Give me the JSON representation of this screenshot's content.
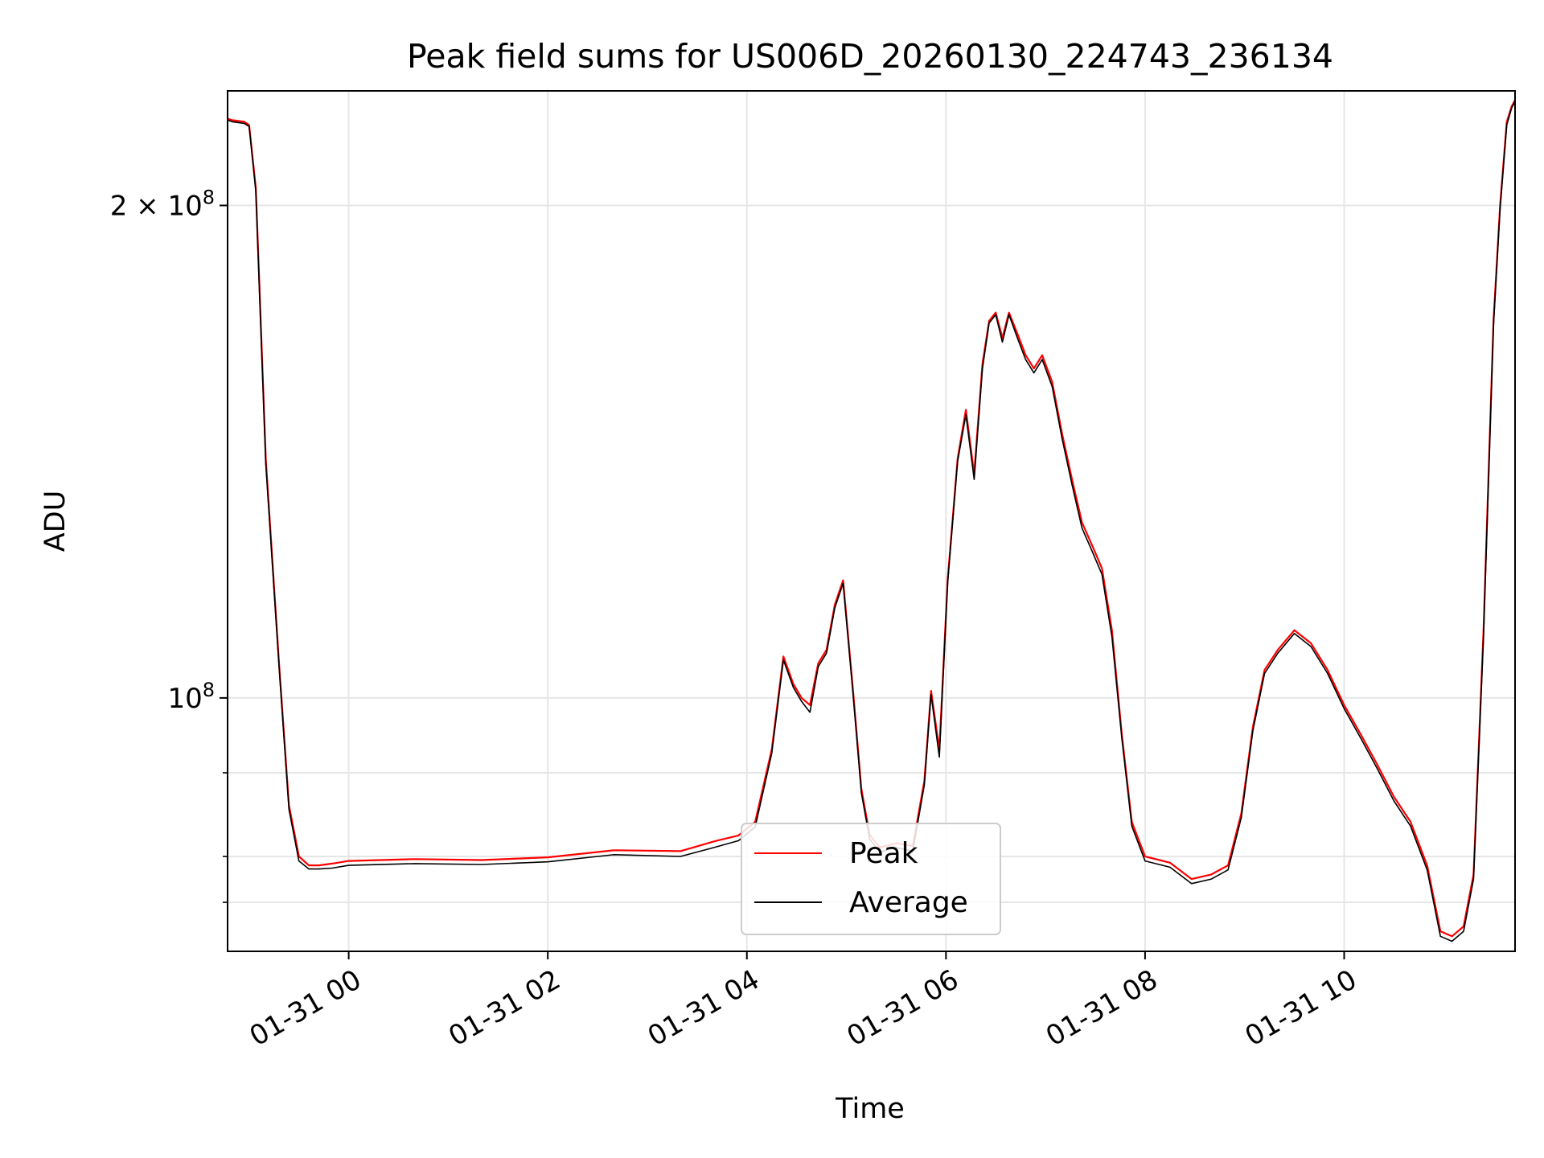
{
  "chart_data": {
    "type": "line",
    "title": "Peak field sums for US006D_20260130_224743_236134",
    "xlabel": "Time",
    "ylabel": "ADU",
    "yscale": "log",
    "xlim": [
      "2026-01-30 22:47",
      "2026-01-31 11:43"
    ],
    "ylim": [
      70000000,
      235000000
    ],
    "grid": true,
    "legend_position": "lower-center",
    "x_ticks": [
      {
        "value": "2026-01-31 00:00",
        "label": "01-31 00"
      },
      {
        "value": "2026-01-31 02:00",
        "label": "01-31 02"
      },
      {
        "value": "2026-01-31 04:00",
        "label": "01-31 04"
      },
      {
        "value": "2026-01-31 06:00",
        "label": "01-31 06"
      },
      {
        "value": "2026-01-31 08:00",
        "label": "01-31 08"
      },
      {
        "value": "2026-01-31 10:00",
        "label": "01-31 10"
      }
    ],
    "y_ticks_major": [
      {
        "value": 100000000,
        "base": "10",
        "exp": "8",
        "coef": ""
      },
      {
        "value": 200000000,
        "base": "10",
        "exp": "8",
        "coef": "2 × "
      }
    ],
    "y_ticks_minor": [
      75000000,
      80000000,
      90000000
    ],
    "series": [
      {
        "name": "Peak",
        "color": "#ff0000",
        "x": [
          "2026-01-30 22:47",
          "2026-01-30 22:50",
          "2026-01-30 22:57",
          "2026-01-30 23:00",
          "2026-01-30 23:04",
          "2026-01-30 23:10",
          "2026-01-30 23:18",
          "2026-01-30 23:24",
          "2026-01-30 23:30",
          "2026-01-30 23:36",
          "2026-01-30 23:42",
          "2026-01-30 23:50",
          "2026-01-31 00:00",
          "2026-01-31 00:40",
          "2026-01-31 01:20",
          "2026-01-31 02:00",
          "2026-01-31 02:40",
          "2026-01-31 03:20",
          "2026-01-31 03:40",
          "2026-01-31 03:55",
          "2026-01-31 04:05",
          "2026-01-31 04:15",
          "2026-01-31 04:22",
          "2026-01-31 04:28",
          "2026-01-31 04:33",
          "2026-01-31 04:38",
          "2026-01-31 04:43",
          "2026-01-31 04:48",
          "2026-01-31 04:53",
          "2026-01-31 04:58",
          "2026-01-31 05:04",
          "2026-01-31 05:09",
          "2026-01-31 05:14",
          "2026-01-31 05:20",
          "2026-01-31 05:30",
          "2026-01-31 05:40",
          "2026-01-31 05:47",
          "2026-01-31 05:51",
          "2026-01-31 05:56",
          "2026-01-31 06:01",
          "2026-01-31 06:07",
          "2026-01-31 06:12",
          "2026-01-31 06:17",
          "2026-01-31 06:22",
          "2026-01-31 06:26",
          "2026-01-31 06:30",
          "2026-01-31 06:34",
          "2026-01-31 06:38",
          "2026-01-31 06:43",
          "2026-01-31 06:48",
          "2026-01-31 06:53",
          "2026-01-31 06:58",
          "2026-01-31 07:04",
          "2026-01-31 07:10",
          "2026-01-31 07:16",
          "2026-01-31 07:22",
          "2026-01-31 07:28",
          "2026-01-31 07:34",
          "2026-01-31 07:40",
          "2026-01-31 07:46",
          "2026-01-31 07:52",
          "2026-01-31 08:00",
          "2026-01-31 08:15",
          "2026-01-31 08:28",
          "2026-01-31 08:40",
          "2026-01-31 08:50",
          "2026-01-31 08:58",
          "2026-01-31 09:05",
          "2026-01-31 09:12",
          "2026-01-31 09:20",
          "2026-01-31 09:30",
          "2026-01-31 09:40",
          "2026-01-31 09:50",
          "2026-01-31 10:00",
          "2026-01-31 10:10",
          "2026-01-31 10:20",
          "2026-01-31 10:30",
          "2026-01-31 10:40",
          "2026-01-31 10:50",
          "2026-01-31 10:58",
          "2026-01-31 11:05",
          "2026-01-31 11:12",
          "2026-01-31 11:18",
          "2026-01-31 11:24",
          "2026-01-31 11:30",
          "2026-01-31 11:34",
          "2026-01-31 11:38",
          "2026-01-31 11:41",
          "2026-01-31 11:43"
        ],
        "values": [
          226000000,
          225500000,
          225000000,
          224000000,
          205000000,
          140000000,
          105000000,
          86000000,
          80000000,
          79000000,
          79000000,
          79200000,
          79500000,
          79700000,
          79600000,
          79900000,
          80700000,
          80600000,
          81700000,
          82400000,
          84000000,
          93000000,
          106000000,
          102000000,
          100000000,
          99000000,
          105000000,
          107000000,
          114000000,
          118000000,
          101000000,
          88000000,
          82500000,
          81000000,
          81500000,
          81200000,
          89000000,
          101000000,
          93000000,
          118000000,
          140000000,
          150000000,
          137000000,
          160000000,
          170000000,
          172000000,
          166000000,
          172000000,
          167000000,
          162000000,
          159000000,
          162000000,
          156000000,
          145000000,
          136000000,
          128000000,
          124000000,
          120000000,
          110000000,
          95000000,
          84000000,
          80000000,
          79300000,
          77500000,
          78000000,
          79000000,
          85000000,
          96000000,
          104000000,
          107000000,
          110000000,
          108000000,
          104000000,
          99000000,
          95000000,
          91000000,
          87000000,
          84000000,
          79000000,
          72000000,
          71500000,
          72500000,
          78000000,
          110000000,
          170000000,
          200000000,
          225000000,
          230000000,
          232000000
        ]
      },
      {
        "name": "Average",
        "color": "#000000",
        "x": [
          "2026-01-30 22:47",
          "2026-01-30 22:50",
          "2026-01-30 22:57",
          "2026-01-30 23:00",
          "2026-01-30 23:04",
          "2026-01-30 23:10",
          "2026-01-30 23:18",
          "2026-01-30 23:24",
          "2026-01-30 23:30",
          "2026-01-30 23:36",
          "2026-01-30 23:42",
          "2026-01-30 23:50",
          "2026-01-31 00:00",
          "2026-01-31 00:40",
          "2026-01-31 01:20",
          "2026-01-31 02:00",
          "2026-01-31 02:40",
          "2026-01-31 03:20",
          "2026-01-31 03:40",
          "2026-01-31 03:55",
          "2026-01-31 04:05",
          "2026-01-31 04:15",
          "2026-01-31 04:22",
          "2026-01-31 04:28",
          "2026-01-31 04:33",
          "2026-01-31 04:38",
          "2026-01-31 04:43",
          "2026-01-31 04:48",
          "2026-01-31 04:53",
          "2026-01-31 04:58",
          "2026-01-31 05:04",
          "2026-01-31 05:09",
          "2026-01-31 05:14",
          "2026-01-31 05:20",
          "2026-01-31 05:30",
          "2026-01-31 05:40",
          "2026-01-31 05:47",
          "2026-01-31 05:51",
          "2026-01-31 05:56",
          "2026-01-31 06:01",
          "2026-01-31 06:07",
          "2026-01-31 06:12",
          "2026-01-31 06:17",
          "2026-01-31 06:22",
          "2026-01-31 06:26",
          "2026-01-31 06:30",
          "2026-01-31 06:34",
          "2026-01-31 06:38",
          "2026-01-31 06:43",
          "2026-01-31 06:48",
          "2026-01-31 06:53",
          "2026-01-31 06:58",
          "2026-01-31 07:04",
          "2026-01-31 07:10",
          "2026-01-31 07:16",
          "2026-01-31 07:22",
          "2026-01-31 07:28",
          "2026-01-31 07:34",
          "2026-01-31 07:40",
          "2026-01-31 07:46",
          "2026-01-31 07:52",
          "2026-01-31 08:00",
          "2026-01-31 08:15",
          "2026-01-31 08:28",
          "2026-01-31 08:40",
          "2026-01-31 08:50",
          "2026-01-31 08:58",
          "2026-01-31 09:05",
          "2026-01-31 09:12",
          "2026-01-31 09:20",
          "2026-01-31 09:30",
          "2026-01-31 09:40",
          "2026-01-31 09:50",
          "2026-01-31 10:00",
          "2026-01-31 10:10",
          "2026-01-31 10:20",
          "2026-01-31 10:30",
          "2026-01-31 10:40",
          "2026-01-31 10:50",
          "2026-01-31 10:58",
          "2026-01-31 11:05",
          "2026-01-31 11:12",
          "2026-01-31 11:18",
          "2026-01-31 11:24",
          "2026-01-31 11:30",
          "2026-01-31 11:34",
          "2026-01-31 11:38",
          "2026-01-31 11:41",
          "2026-01-31 11:43"
        ],
        "values": [
          225500000,
          225000000,
          224500000,
          223500000,
          204000000,
          139000000,
          104500000,
          85500000,
          79500000,
          78600000,
          78600000,
          78700000,
          79000000,
          79200000,
          79100000,
          79400000,
          80200000,
          80000000,
          81000000,
          81800000,
          83400000,
          92500000,
          105500000,
          101500000,
          99500000,
          98000000,
          104500000,
          106500000,
          113500000,
          117500000,
          100500000,
          87500000,
          82000000,
          80500000,
          81000000,
          80600000,
          88500000,
          100500000,
          92000000,
          117500000,
          139500000,
          149000000,
          136000000,
          159000000,
          169500000,
          171500000,
          165000000,
          171500000,
          166000000,
          161000000,
          158000000,
          161000000,
          155000000,
          144000000,
          135000000,
          127000000,
          123000000,
          119000000,
          109000000,
          94500000,
          83500000,
          79500000,
          78800000,
          77000000,
          77500000,
          78500000,
          84500000,
          95500000,
          103500000,
          106500000,
          109500000,
          107500000,
          103500000,
          98500000,
          94500000,
          90500000,
          86500000,
          83500000,
          78500000,
          71500000,
          71000000,
          72000000,
          77500000,
          109000000,
          169000000,
          199000000,
          224000000,
          229500000,
          231500000
        ]
      }
    ]
  }
}
